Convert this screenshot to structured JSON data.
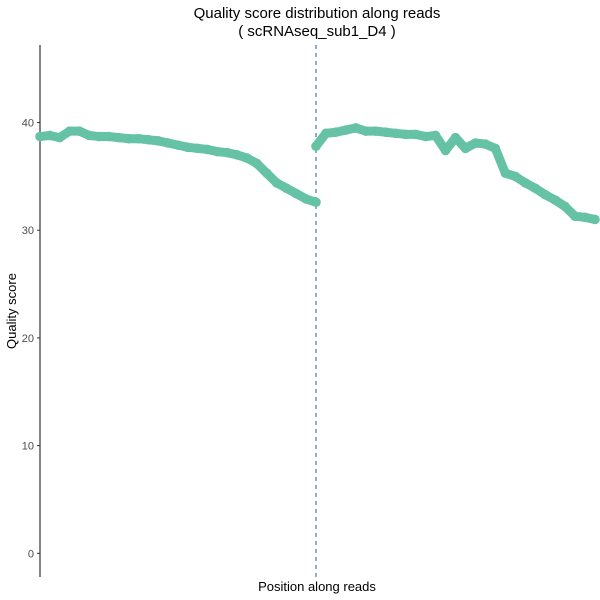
{
  "chart_data": {
    "type": "scatter",
    "title": "Quality score distribution along reads",
    "subtitle": "( scRNAseq_sub1_D4 )",
    "xlabel": "Position along reads",
    "ylabel": "Quality score",
    "ylim": [
      -2.2,
      47.2
    ],
    "yticks": [
      "0",
      "10",
      "20",
      "30",
      "40"
    ],
    "grid": false,
    "legend": "none",
    "point_color": "#66c2a5",
    "divider_color": "#4f81b3",
    "divider_style": "dashed",
    "series": [
      {
        "values": [
          38.7,
          38.8,
          38.6,
          39.2,
          39.2,
          38.8,
          38.7,
          38.7,
          38.6,
          38.5,
          38.5,
          38.4,
          38.3,
          38.1,
          37.9,
          37.7,
          37.6,
          37.5,
          37.3,
          37.2,
          37.0,
          36.7,
          36.2,
          35.3,
          34.4,
          33.9,
          33.4,
          32.9,
          32.6
        ]
      },
      {
        "values": [
          37.8,
          39.0,
          39.1,
          39.3,
          39.5,
          39.2,
          39.2,
          39.1,
          39.0,
          38.9,
          38.9,
          38.7,
          38.8,
          37.4,
          38.6,
          37.6,
          38.1,
          38.0,
          37.6,
          35.3,
          35.0,
          34.4,
          33.9,
          33.3,
          32.8,
          32.2,
          31.3,
          31.2,
          31.0
        ]
      }
    ]
  }
}
